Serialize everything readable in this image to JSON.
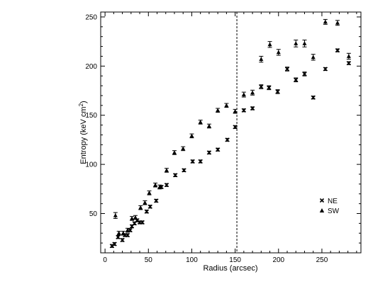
{
  "chart_data": {
    "type": "scatter",
    "xlabel": "Radius (arcsec)",
    "ylabel": "Entropy (keV cm",
    "ylabel_sup": "2",
    "ylabel_close": ")",
    "xlim": [
      -5,
      295
    ],
    "ylim": [
      10,
      255
    ],
    "xticks": [
      0,
      50,
      100,
      150,
      200,
      250
    ],
    "yticks": [
      50,
      100,
      150,
      200,
      250
    ],
    "vline_x": 152,
    "legend_position": "bottom-right",
    "series": [
      {
        "name": "NE",
        "marker": "x",
        "points": [
          {
            "x": 8,
            "y": 17,
            "err": 1.5
          },
          {
            "x": 11,
            "y": 19,
            "err": 1.5
          },
          {
            "x": 15,
            "y": 26,
            "err": 1.5
          },
          {
            "x": 20,
            "y": 23,
            "err": 1.5
          },
          {
            "x": 23,
            "y": 28,
            "err": 1.5
          },
          {
            "x": 26,
            "y": 28,
            "err": 1.5
          },
          {
            "x": 29,
            "y": 33,
            "err": 1.5
          },
          {
            "x": 31,
            "y": 37,
            "err": 1.5
          },
          {
            "x": 34,
            "y": 40,
            "err": 1.5
          },
          {
            "x": 37,
            "y": 43,
            "err": 1.5
          },
          {
            "x": 40,
            "y": 41,
            "err": 1.5
          },
          {
            "x": 43,
            "y": 41,
            "err": 1.5
          },
          {
            "x": 48,
            "y": 52,
            "err": 1.5
          },
          {
            "x": 52,
            "y": 57,
            "err": 1.5
          },
          {
            "x": 59,
            "y": 63,
            "err": 1.5
          },
          {
            "x": 65,
            "y": 77,
            "err": 1.5
          },
          {
            "x": 71,
            "y": 79,
            "err": 1.5
          },
          {
            "x": 81,
            "y": 89,
            "err": 1.5
          },
          {
            "x": 91,
            "y": 94,
            "err": 1.5
          },
          {
            "x": 101,
            "y": 103,
            "err": 1.5
          },
          {
            "x": 110,
            "y": 103,
            "err": 1.5
          },
          {
            "x": 120,
            "y": 112,
            "err": 1.5
          },
          {
            "x": 130,
            "y": 115,
            "err": 1.5
          },
          {
            "x": 141,
            "y": 125,
            "err": 1.5
          },
          {
            "x": 150,
            "y": 138,
            "err": 1.5
          },
          {
            "x": 160,
            "y": 155,
            "err": 1.5
          },
          {
            "x": 170,
            "y": 157,
            "err": 1.5
          },
          {
            "x": 180,
            "y": 179,
            "err": 2
          },
          {
            "x": 189,
            "y": 178,
            "err": 2
          },
          {
            "x": 199,
            "y": 174,
            "err": 2
          },
          {
            "x": 210,
            "y": 197,
            "err": 2
          },
          {
            "x": 220,
            "y": 186,
            "err": 2
          },
          {
            "x": 230,
            "y": 192,
            "err": 2
          },
          {
            "x": 240,
            "y": 168,
            "err": 1.5
          },
          {
            "x": 254,
            "y": 197,
            "err": 1.5
          },
          {
            "x": 268,
            "y": 216,
            "err": 1.5
          },
          {
            "x": 281,
            "y": 203,
            "err": 1.5
          }
        ]
      },
      {
        "name": "SW",
        "marker": "triangle",
        "points": [
          {
            "x": 12,
            "y": 48,
            "err": 3
          },
          {
            "x": 16,
            "y": 30,
            "err": 2
          },
          {
            "x": 21,
            "y": 30,
            "err": 2
          },
          {
            "x": 26,
            "y": 33,
            "err": 2
          },
          {
            "x": 31,
            "y": 45,
            "err": 2
          },
          {
            "x": 35,
            "y": 46,
            "err": 2
          },
          {
            "x": 41,
            "y": 56,
            "err": 2
          },
          {
            "x": 46,
            "y": 61,
            "err": 2
          },
          {
            "x": 51,
            "y": 71,
            "err": 2
          },
          {
            "x": 58,
            "y": 79,
            "err": 2
          },
          {
            "x": 63,
            "y": 77,
            "err": 2
          },
          {
            "x": 71,
            "y": 94,
            "err": 2
          },
          {
            "x": 80,
            "y": 112,
            "err": 2
          },
          {
            "x": 90,
            "y": 116,
            "err": 2
          },
          {
            "x": 100,
            "y": 129,
            "err": 2
          },
          {
            "x": 110,
            "y": 143,
            "err": 2
          },
          {
            "x": 120,
            "y": 139,
            "err": 2
          },
          {
            "x": 130,
            "y": 155,
            "err": 2
          },
          {
            "x": 140,
            "y": 160,
            "err": 2
          },
          {
            "x": 150,
            "y": 154,
            "err": 2
          },
          {
            "x": 160,
            "y": 171,
            "err": 2.5
          },
          {
            "x": 170,
            "y": 173,
            "err": 2.5
          },
          {
            "x": 180,
            "y": 207,
            "err": 3
          },
          {
            "x": 190,
            "y": 222,
            "err": 3
          },
          {
            "x": 200,
            "y": 214,
            "err": 3
          },
          {
            "x": 220,
            "y": 223,
            "err": 3.5
          },
          {
            "x": 230,
            "y": 223,
            "err": 3.5
          },
          {
            "x": 240,
            "y": 209,
            "err": 3
          },
          {
            "x": 254,
            "y": 245,
            "err": 2.5
          },
          {
            "x": 268,
            "y": 244,
            "err": 2.5
          },
          {
            "x": 281,
            "y": 210,
            "err": 3
          }
        ]
      }
    ]
  }
}
